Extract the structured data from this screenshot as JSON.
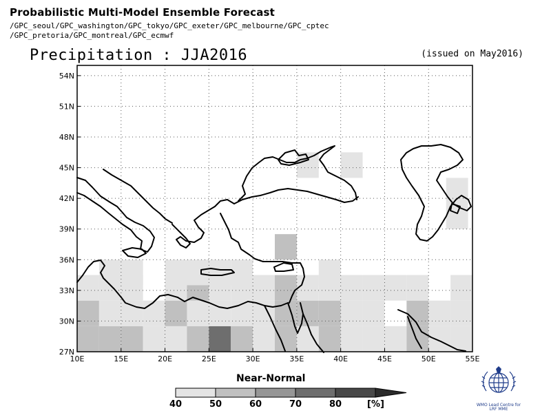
{
  "header": {
    "title": "Probabilistic Multi-Model Ensemble Forecast",
    "sources_line1": "/GPC_seoul/GPC_washington/GPC_tokyo/GPC_exeter/GPC_melbourne/GPC_cptec",
    "sources_line2": "/GPC_pretoria/GPC_montreal/GPC_ecmwf"
  },
  "map": {
    "title": "Precipitation : JJA2016",
    "issued": "(issued on May2016)",
    "lon_range": [
      10,
      55
    ],
    "lat_range": [
      27,
      55
    ],
    "x_ticks": [
      "10E",
      "15E",
      "20E",
      "25E",
      "30E",
      "35E",
      "40E",
      "45E",
      "50E",
      "55E"
    ],
    "y_ticks": [
      "27N",
      "30N",
      "33N",
      "36N",
      "39N",
      "42N",
      "45N",
      "48N",
      "51N",
      "54N"
    ],
    "grid": "dotted",
    "cell_size_deg": 2.5,
    "cells": [
      {
        "lon": 10,
        "lat": 27.0,
        "v": 50
      },
      {
        "lon": 12.5,
        "lat": 27.0,
        "v": 50
      },
      {
        "lon": 15,
        "lat": 27.0,
        "v": 50
      },
      {
        "lon": 17.5,
        "lat": 27.0,
        "v": 40
      },
      {
        "lon": 20,
        "lat": 27.0,
        "v": 40
      },
      {
        "lon": 22.5,
        "lat": 27.0,
        "v": 50
      },
      {
        "lon": 25,
        "lat": 27.0,
        "v": 70
      },
      {
        "lon": 27.5,
        "lat": 27.0,
        "v": 50
      },
      {
        "lon": 30,
        "lat": 27.0,
        "v": 40
      },
      {
        "lon": 32.5,
        "lat": 27.0,
        "v": 50
      },
      {
        "lon": 35,
        "lat": 27.0,
        "v": 40
      },
      {
        "lon": 37.5,
        "lat": 27.0,
        "v": 50
      },
      {
        "lon": 40,
        "lat": 27.0,
        "v": 40
      },
      {
        "lon": 42.5,
        "lat": 27.0,
        "v": 40
      },
      {
        "lon": 45,
        "lat": 27.0,
        "v": 40
      },
      {
        "lon": 47.5,
        "lat": 27.0,
        "v": 50
      },
      {
        "lon": 50,
        "lat": 27.0,
        "v": 40
      },
      {
        "lon": 52.5,
        "lat": 27.0,
        "v": 40
      },
      {
        "lon": 10,
        "lat": 29.5,
        "v": 50
      },
      {
        "lon": 12.5,
        "lat": 29.5,
        "v": 40
      },
      {
        "lon": 15,
        "lat": 29.5,
        "v": 40
      },
      {
        "lon": 17.5,
        "lat": 29.5,
        "v": 40
      },
      {
        "lon": 20,
        "lat": 29.5,
        "v": 50
      },
      {
        "lon": 22.5,
        "lat": 29.5,
        "v": 40
      },
      {
        "lon": 25,
        "lat": 29.5,
        "v": 40
      },
      {
        "lon": 27.5,
        "lat": 29.5,
        "v": 40
      },
      {
        "lon": 30,
        "lat": 29.5,
        "v": 40
      },
      {
        "lon": 32.5,
        "lat": 29.5,
        "v": 50
      },
      {
        "lon": 35,
        "lat": 29.5,
        "v": 50
      },
      {
        "lon": 37.5,
        "lat": 29.5,
        "v": 50
      },
      {
        "lon": 40,
        "lat": 29.5,
        "v": 40
      },
      {
        "lon": 42.5,
        "lat": 29.5,
        "v": 40
      },
      {
        "lon": 47.5,
        "lat": 29.5,
        "v": 50
      },
      {
        "lon": 50,
        "lat": 29.5,
        "v": 40
      },
      {
        "lon": 52.5,
        "lat": 29.5,
        "v": 40
      },
      {
        "lon": 10,
        "lat": 32.0,
        "v": 40
      },
      {
        "lon": 12.5,
        "lat": 32.0,
        "v": 40
      },
      {
        "lon": 15,
        "lat": 32.0,
        "v": 40
      },
      {
        "lon": 20,
        "lat": 32.0,
        "v": 40
      },
      {
        "lon": 22.5,
        "lat": 32.0,
        "v": 50
      },
      {
        "lon": 25,
        "lat": 32.0,
        "v": 40
      },
      {
        "lon": 27.5,
        "lat": 32.0,
        "v": 40
      },
      {
        "lon": 30,
        "lat": 32.0,
        "v": 40
      },
      {
        "lon": 32.5,
        "lat": 32.0,
        "v": 50
      },
      {
        "lon": 35,
        "lat": 32.0,
        "v": 40
      },
      {
        "lon": 37.5,
        "lat": 32.0,
        "v": 40
      },
      {
        "lon": 40,
        "lat": 32.0,
        "v": 40
      },
      {
        "lon": 42.5,
        "lat": 32.0,
        "v": 40
      },
      {
        "lon": 45,
        "lat": 32.0,
        "v": 40
      },
      {
        "lon": 47.5,
        "lat": 32.0,
        "v": 40
      },
      {
        "lon": 52.5,
        "lat": 32.0,
        "v": 40
      },
      {
        "lon": 12.5,
        "lat": 33.5,
        "v": 40
      },
      {
        "lon": 15,
        "lat": 33.5,
        "v": 40
      },
      {
        "lon": 20,
        "lat": 33.5,
        "v": 40
      },
      {
        "lon": 22.5,
        "lat": 33.5,
        "v": 40
      },
      {
        "lon": 25,
        "lat": 33.5,
        "v": 40
      },
      {
        "lon": 27.5,
        "lat": 33.5,
        "v": 40
      },
      {
        "lon": 37.5,
        "lat": 33.5,
        "v": 40
      },
      {
        "lon": 32.5,
        "lat": 36.0,
        "v": 50
      },
      {
        "lon": 35,
        "lat": 44.0,
        "v": 40
      },
      {
        "lon": 40,
        "lat": 44.0,
        "v": 40
      },
      {
        "lon": 52.0,
        "lat": 39.0,
        "v": 40
      },
      {
        "lon": 52.0,
        "lat": 41.5,
        "v": 40
      }
    ]
  },
  "legend": {
    "title": "Near-Normal",
    "ticks": [
      "40",
      "50",
      "60",
      "70",
      "80"
    ],
    "unit": "[%]",
    "colors": [
      "#e4e4e4",
      "#c0c0c0",
      "#969696",
      "#6e6e6e",
      "#484848"
    ]
  },
  "logo": {
    "line1": "WMO Lead Centre for",
    "line2": "LRF MME",
    "accent": "#1f3c8a"
  }
}
